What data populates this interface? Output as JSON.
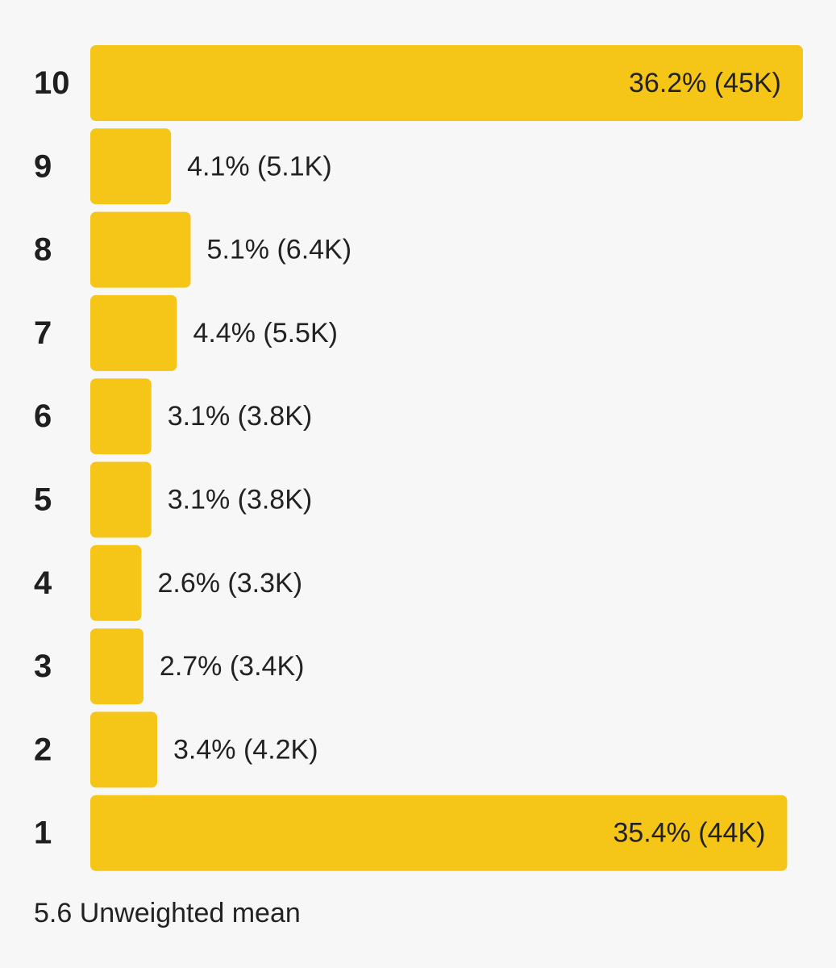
{
  "chart_data": {
    "type": "bar",
    "orientation": "horizontal",
    "categories": [
      "10",
      "9",
      "8",
      "7",
      "6",
      "5",
      "4",
      "3",
      "2",
      "1"
    ],
    "values": [
      36.2,
      4.1,
      5.1,
      4.4,
      3.1,
      3.1,
      2.6,
      2.7,
      3.4,
      35.4
    ],
    "counts": [
      "45K",
      "5.1K",
      "6.4K",
      "5.5K",
      "3.8K",
      "3.8K",
      "3.3K",
      "3.4K",
      "4.2K",
      "44K"
    ],
    "data_labels": [
      "36.2% (45K)",
      "4.1% (5.1K)",
      "5.1% (6.4K)",
      "4.4% (5.5K)",
      "3.1% (3.8K)",
      "3.1% (3.8K)",
      "2.6% (3.3K)",
      "2.7% (3.4K)",
      "3.4% (4.2K)",
      "35.4% (44K)"
    ],
    "bar_color": "#f5c518",
    "grid": false,
    "legend": "none"
  },
  "summary": {
    "mean_value": "5.6",
    "mean_label": "Unweighted mean"
  }
}
